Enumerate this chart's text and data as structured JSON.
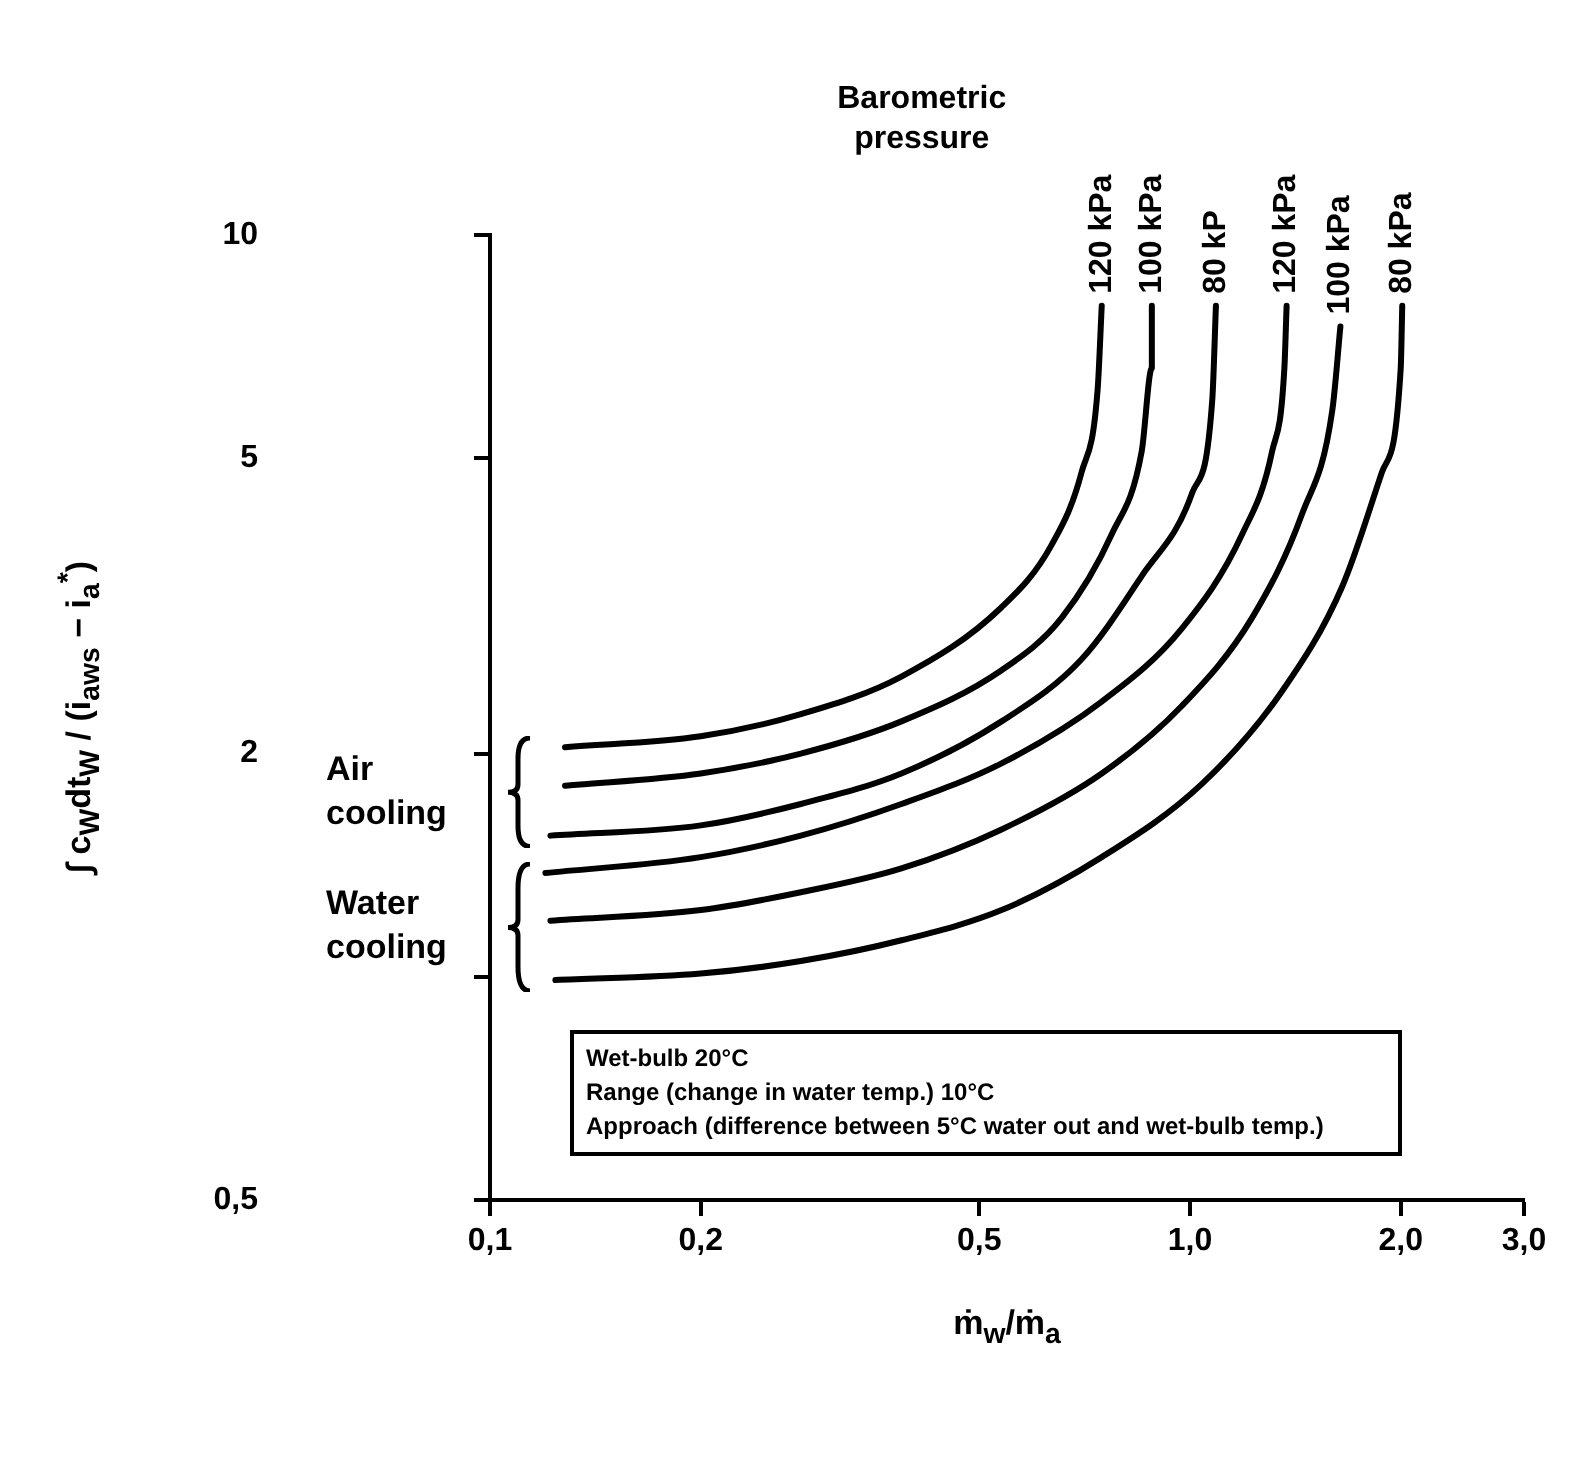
{
  "chart_data": {
    "type": "line",
    "xlabel": "ṁ$_{w}$/ṁ$_{a}$",
    "ylabel": "∫ c$_{W}$dt$_{W}$ / (i$_{aws}$ − i$_{a}$$^{*}$)",
    "legend_title": "Barometric pressure",
    "log": "xy",
    "xlim": [
      0.1,
      3.0
    ],
    "xticks": [
      {
        "value": 0.1,
        "label": "0,1"
      },
      {
        "value": 0.2,
        "label": "0,2"
      },
      {
        "value": 0.5,
        "label": "0,5"
      },
      {
        "value": 1.0,
        "label": "1,0"
      },
      {
        "value": 2.0,
        "label": "2,0"
      },
      {
        "value": 3.0,
        "label": "3,0"
      }
    ],
    "ylim": [
      0.5,
      10
    ],
    "yticks": [
      {
        "value": 0.5,
        "label": "0,5"
      },
      {
        "value": 1,
        "label": null
      },
      2,
      5,
      10
    ],
    "annotations": [
      "Air cooling",
      "Water cooling",
      "Wet-bulb 20°C",
      "Range (change in water temp.) 10°C",
      "Approach (difference between 5°C water out and wet-bulb temp.)"
    ],
    "series": [
      {
        "name": "120 kPa",
        "color": "#000000",
        "x": [
          0.128,
          0.2,
          0.278,
          0.387,
          0.538,
          0.634,
          0.7,
          0.738,
          0.748
        ],
        "values": [
          2.04,
          2.11,
          2.26,
          2.54,
          3.15,
          3.82,
          4.79,
          6.2,
          8.03
        ]
      },
      {
        "name": "100 kPa",
        "color": "#000000",
        "x": [
          0.128,
          0.2,
          0.278,
          0.387,
          0.538,
          0.656,
          0.773,
          0.853,
          0.882,
          0.882
        ],
        "values": [
          1.81,
          1.88,
          2.0,
          2.21,
          2.59,
          3.05,
          3.95,
          5.11,
          6.62,
          8.03
        ]
      },
      {
        "name": "80 kP",
        "color": "#000000",
        "x": [
          0.122,
          0.2,
          0.278,
          0.387,
          0.538,
          0.7,
          0.853,
          1.007,
          1.076,
          1.089
        ],
        "values": [
          1.55,
          1.6,
          1.71,
          1.88,
          2.21,
          2.68,
          3.47,
          4.49,
          6.0,
          8.03
        ]
      },
      {
        "name": "120 kPa",
        "color": "#000000",
        "x": [
          0.12,
          0.2,
          0.278,
          0.387,
          0.538,
          0.748,
          0.974,
          1.187,
          1.31,
          1.364,
          1.374
        ],
        "values": [
          1.38,
          1.45,
          1.55,
          1.71,
          1.94,
          2.35,
          2.95,
          3.95,
          5.11,
          6.62,
          8.03
        ]
      },
      {
        "name": "100 kPa",
        "color": "#000000",
        "x": [
          0.122,
          0.2,
          0.278,
          0.387,
          0.538,
          0.748,
          0.974,
          1.227,
          1.446,
          1.597,
          1.64
        ],
        "values": [
          1.19,
          1.23,
          1.3,
          1.4,
          1.58,
          1.88,
          2.32,
          3.05,
          4.21,
          5.81,
          7.53
        ]
      },
      {
        "name": "80 kPa",
        "color": "#000000",
        "x": [
          0.124,
          0.2,
          0.278,
          0.387,
          0.538,
          0.748,
          1.04,
          1.355,
          1.65,
          1.88,
          2.0,
          2.01
        ],
        "values": [
          0.99,
          1.01,
          1.05,
          1.12,
          1.23,
          1.45,
          1.82,
          2.43,
          3.36,
          4.79,
          6.62,
          8.03
        ]
      }
    ]
  }
}
